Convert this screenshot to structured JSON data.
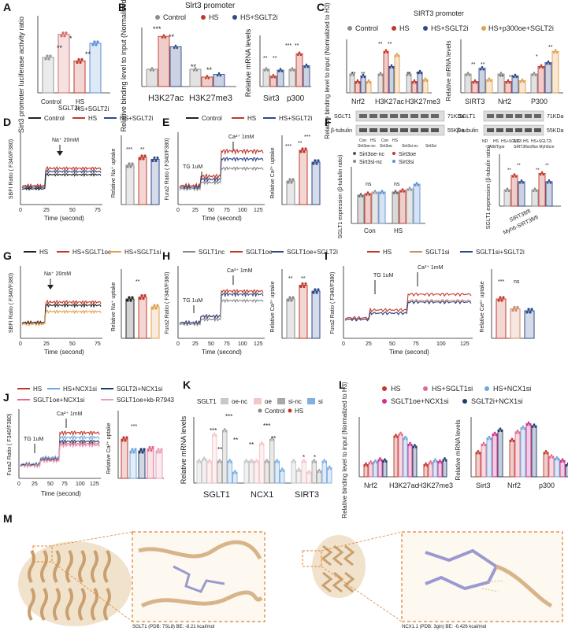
{
  "panels": {
    "A": {
      "label": "A",
      "ylabel": "Sirt3 promoter luciferase activity ratio",
      "categories": [
        "Control",
        "SGLT2i",
        "HS",
        "HS+SGLT2i"
      ],
      "values": [
        1.0,
        1.65,
        0.9,
        1.4
      ],
      "sig": [
        "**",
        "*",
        "**"
      ],
      "colors": [
        "#999999",
        "#d36b6b",
        "#c0392b",
        "#5b8fd6"
      ]
    },
    "B": {
      "label": "B",
      "title": "Slrt3 promoter",
      "legend": [
        "Control",
        "HS",
        "HS+SGLT2i"
      ],
      "left_ylabel": "Relative binding level to input (Normalized to H3)",
      "left_groups": [
        "H3K27ac",
        "H3K27me3"
      ],
      "left_values": [
        [
          1.0,
          2.9,
          2.3
        ],
        [
          1.0,
          0.55,
          0.7
        ]
      ],
      "right_ylabel": "Relative mRNA levels",
      "right_groups": [
        "Sirt3",
        "p300"
      ],
      "right_values": [
        [
          1.0,
          0.6,
          0.95
        ],
        [
          1.0,
          1.9,
          1.2
        ]
      ],
      "sig_left": [
        "***",
        "**",
        "**",
        "**"
      ],
      "sig_right": [
        "**",
        "**",
        "***",
        "**"
      ]
    },
    "C": {
      "label": "C",
      "title": "SIRT3 promoter",
      "legend": [
        "Control",
        "HS",
        "HS+SGLT2i",
        "HS+p300oe+SGLT2i"
      ],
      "left_ylabel": "Relative binding level to input (Normalized to H3)",
      "left_groups": [
        "Nrf2",
        "H3K27ac",
        "H3K27me3"
      ],
      "left_values": [
        [
          1.0,
          0.6,
          0.9,
          0.6
        ],
        [
          1.0,
          2.2,
          1.4,
          2.0
        ],
        [
          1.0,
          0.6,
          1.1,
          0.7
        ]
      ],
      "right_ylabel": "Relative mRNA levels",
      "right_groups": [
        "SIRT3",
        "Nrf2",
        "P300"
      ],
      "right_values": [
        [
          1.0,
          0.6,
          1.3,
          0.7
        ],
        [
          1.0,
          0.6,
          0.9,
          0.65
        ],
        [
          1.0,
          1.4,
          1.6,
          2.2
        ]
      ],
      "sig_left": [
        "**",
        "**",
        "**",
        "**",
        "**",
        "**"
      ],
      "sig_right": [
        "**",
        "**",
        "**",
        "**",
        "*",
        "**"
      ]
    },
    "D": {
      "label": "D",
      "legend": [
        "Control",
        "HS",
        "HS+SGLT2i"
      ],
      "ylabel": "SBFI Ratio ( F340/F380)",
      "xlabel": "Time (second)",
      "xticks": [
        "0",
        "25",
        "50",
        "75"
      ],
      "stim": "Na⁺ 20mM",
      "bar_ylabel": "Relative Na⁺ uptake",
      "bar_values": [
        1.0,
        1.2,
        1.15
      ],
      "sig": [
        "***",
        "**"
      ]
    },
    "E": {
      "label": "E",
      "legend": [
        "Control",
        "HS",
        "HS+SGLT2i"
      ],
      "ylabel": "Fura2 Ratio ( F340/F380)",
      "xlabel": "Time (second)",
      "xticks": [
        "0",
        "25",
        "50",
        "75",
        "100",
        "125"
      ],
      "stim1": "TG 1uM",
      "stim2": "Ca²⁺ 1mM",
      "bar_ylabel": "Relative Ca²⁺ uptake",
      "bar_values": [
        1.0,
        2.3,
        1.8
      ],
      "sig": [
        "***",
        "**",
        "***"
      ]
    },
    "F": {
      "label": "F",
      "blot1_labels": [
        "SGLT1",
        "β-tubulin"
      ],
      "blot1_kda": [
        "71KDa",
        "55KDa"
      ],
      "blot1_lanes": [
        "Con",
        "HS",
        "Con",
        "HS"
      ],
      "blot1_groups": [
        "Sirt3oe-nc",
        "Sirt3oe",
        "Sirt3si-nc",
        "Sirt3si"
      ],
      "legend_left": [
        "Sirt3oe-nc",
        "Sirt3oe",
        "Sirt3si-nc",
        "Sirt3si"
      ],
      "ylabel": "SGLT1 expression (β-tubulin ratio)",
      "groups": [
        "Con",
        "HS"
      ],
      "sig": [
        "ns",
        "ns"
      ],
      "blot2_labels": [
        "SGLT1",
        "β-tubulin"
      ],
      "blot2_kda": [
        "71KDa",
        "55KDa"
      ],
      "blot2_lanes": [
        "ND",
        "HS",
        "HS+SGLT2i",
        "ND",
        "HS",
        "HS+SGLT2i"
      ],
      "blot2_groups": [
        "WildType",
        "SIRT3flox/flox Myh6cre"
      ],
      "right_ylabel": "SGLT1 expression (β-tubulin ratio)",
      "right_groups": [
        "SIRT3fl/fl",
        "Myh6-SIRT3fl/fl"
      ],
      "right_sig": [
        "**",
        "**",
        "**",
        "**"
      ]
    },
    "G": {
      "label": "G",
      "legend": [
        "HS",
        "HS+SGLT1oe",
        "HS+SGLT1si"
      ],
      "ylabel": "SBFI Ratio ( F340/F380)",
      "xlabel": "Time (second)",
      "xticks": [
        "0",
        "25",
        "50",
        "75"
      ],
      "stim": "Na⁺ 20mM",
      "bar_ylabel": "Relative Na⁺ uptake",
      "bar_values": [
        1.0,
        1.05,
        0.8
      ],
      "sig": [
        "**"
      ]
    },
    "H": {
      "label": "H",
      "legend": [
        "SGLT1nc",
        "SGLT1oe",
        "SGLT1oe+SGLT2i"
      ],
      "ylabel": "Fura2 Ratio ( F340/F380)",
      "xlabel": "Time (second)",
      "xticks": [
        "0",
        "25",
        "50",
        "75",
        "100",
        "125"
      ],
      "stim1": "TG 1uM",
      "stim2": "Ca²⁺ 1mM",
      "bar_ylabel": "Relative Ca²⁺ uptake",
      "bar_values": [
        1.0,
        1.35,
        1.2
      ],
      "sig": [
        "**",
        "**"
      ]
    },
    "I": {
      "label": "I",
      "legend": [
        "HS",
        "SGLT1si",
        "SGLT1si+SGLT2i"
      ],
      "ylabel": "Fura2 Ratio ( F340/F380)",
      "xlabel": "Time (second)",
      "xticks": [
        "0",
        "25",
        "50",
        "75",
        "100",
        "125"
      ],
      "stim1": "TG 1uM",
      "stim2": "Ca²⁺ 1mM",
      "bar_ylabel": "Relative Ca²⁺ uptake",
      "bar_values": [
        1.0,
        0.75,
        0.7
      ],
      "sig": [
        "***",
        "ns"
      ]
    },
    "J": {
      "label": "J",
      "legend": [
        "HS",
        "HS+NCX1si",
        "SGLT2i+NCX1si",
        "SGLT1oe+NCX1si",
        "SGLT1oe+kb-R7943"
      ],
      "ylabel": "Fura2 Ratio ( F340/F380)",
      "xlabel": "Time (second)",
      "xticks": [
        "0",
        "25",
        "50",
        "75",
        "100",
        "125"
      ],
      "stim1": "TG 1uM",
      "stim2": "Ca²⁺ 1mM",
      "bar_ylabel": "Relative Ca²⁺ uptake",
      "bar_values": [
        1.0,
        0.7,
        0.7,
        0.75,
        0.7
      ],
      "sig": [
        "***"
      ]
    },
    "K": {
      "label": "K",
      "legend_title": "SGLT1",
      "legend": [
        "oe-nc",
        "oe",
        "si-nc",
        "si"
      ],
      "legend2": [
        "Control",
        "HS"
      ],
      "ylabel": "Relative mRNA levels",
      "groups": [
        "SGLT1",
        "NCX1",
        "SIRT3"
      ],
      "sig": [
        "***",
        "***",
        "**",
        "**",
        "***",
        "**",
        "**",
        "*",
        "*"
      ]
    },
    "L": {
      "label": "L",
      "legend": [
        "HS",
        "HS+SGLT1si",
        "HS+NCX1si",
        "SGLT1oe+NCX1si",
        "SGLT2i+NCX1si"
      ],
      "left_ylabel": "Relative binding level to input (Normalized to H3)",
      "left_groups": [
        "Nrf2",
        "H3K27ac",
        "H3K27me3"
      ],
      "right_ylabel": "Relative mRNA levels",
      "right_groups": [
        "Sirt3",
        "Nrf2",
        "p300"
      ]
    },
    "M": {
      "label": "M",
      "left_caption": "SGLT1 (PDB: 7SL8)    BE: -8.21 kcal/mol",
      "right_caption": "NCX1.1 (PDB: 3gin)    BE: -0.426 kcal/mol"
    }
  },
  "colors": {
    "control": "#8c8c8c",
    "hs": "#c0392b",
    "treat": "#2e4a8b",
    "light_blue": "#6fa8dc",
    "pink": "#e06c8c",
    "orange": "#e0a050",
    "tan": "#d8b48a",
    "ligand": "#9a9ad0"
  }
}
